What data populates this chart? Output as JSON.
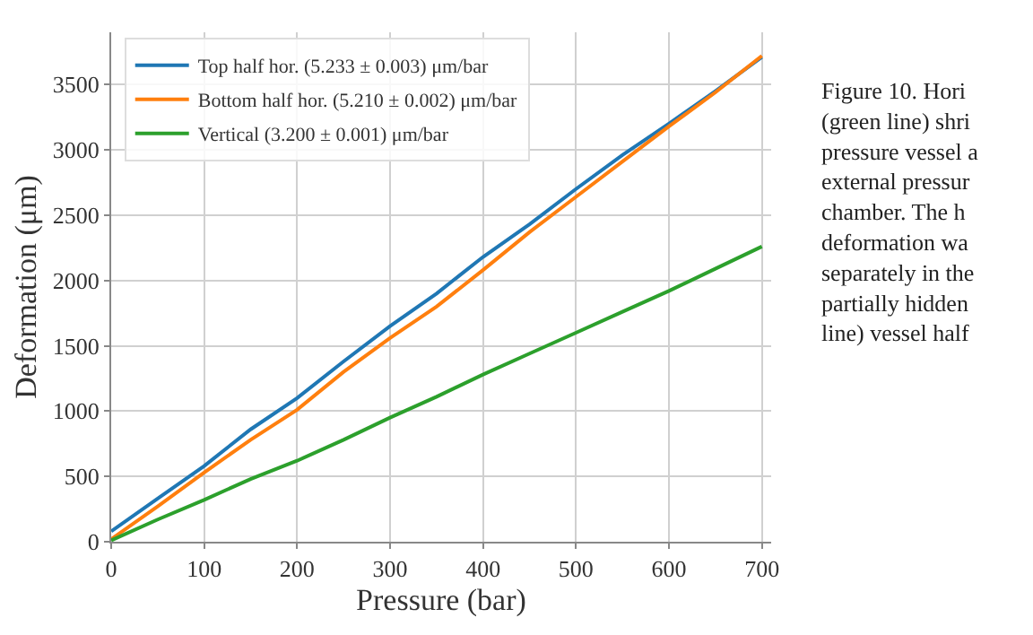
{
  "chart_data": {
    "type": "line",
    "xlabel": "Pressure (bar)",
    "ylabel": "Deformation (μm)",
    "xlim": [
      0,
      710
    ],
    "xticks": [
      0,
      100,
      200,
      300,
      400,
      500,
      600,
      700
    ],
    "ylim": [
      0,
      3900
    ],
    "yticks": [
      0,
      500,
      1000,
      1500,
      2000,
      2500,
      3000,
      3500
    ],
    "grid": true,
    "legend": "top left",
    "marker": "none",
    "line_style": "solid",
    "x": [
      0,
      50,
      100,
      150,
      200,
      250,
      300,
      350,
      400,
      450,
      500,
      550,
      600,
      650,
      700
    ],
    "series": [
      {
        "name": "Top half hor. (5.233 ± 0.003) μm/bar",
        "color": "#1f77b4",
        "values": [
          80,
          330,
          580,
          860,
          1100,
          1380,
          1650,
          1900,
          2180,
          2430,
          2700,
          2960,
          3200,
          3450,
          3710
        ]
      },
      {
        "name": "Bottom half hor. (5.210 ± 0.002) μm/bar",
        "color": "#ff7f0e",
        "values": [
          20,
          270,
          530,
          780,
          1010,
          1300,
          1560,
          1800,
          2080,
          2370,
          2640,
          2910,
          3180,
          3440,
          3720
        ]
      },
      {
        "name": "Vertical (3.200 ± 0.001) μm/bar",
        "color": "#2ca02c",
        "values": [
          10,
          170,
          320,
          480,
          620,
          780,
          950,
          1110,
          1280,
          1440,
          1600,
          1760,
          1920,
          2090,
          2260
        ]
      }
    ],
    "annotations": [
      "Figure 10. Hori\n(green line) shri\npressure vessel a\nexternal pressur\nchamber. The h\ndeformation wa\nseparately in the\npartially hidden\nline) vessel half"
    ]
  }
}
